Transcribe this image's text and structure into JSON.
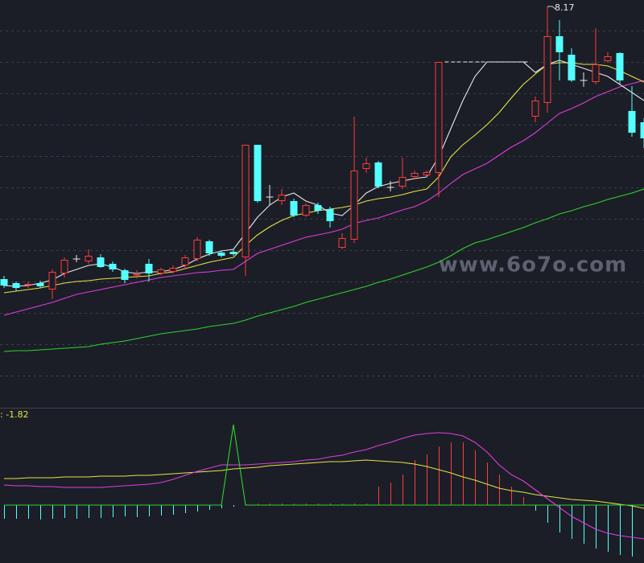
{
  "chart_data": [
    {
      "type": "candlestick",
      "open": [
        6.475,
        6.45,
        6.44,
        6.45,
        6.41,
        6.51,
        6.6,
        6.585,
        6.61,
        6.57,
        6.53,
        6.5,
        6.57,
        6.51,
        6.52,
        6.56,
        6.6,
        6.71,
        6.64,
        6.645,
        6.61,
        7.31,
        6.985,
        6.96,
        6.96,
        6.87,
        6.935,
        6.91,
        6.67,
        6.72,
        7.16,
        7.2,
        7.045,
        7.05,
        7.11,
        7.12,
        7.135,
        7.825,
        7.825,
        7.825,
        7.825,
        7.825,
        7.825,
        7.825,
        7.485,
        7.57,
        7.985,
        7.87,
        7.71,
        7.7,
        7.83,
        7.88,
        7.52,
        7.45
      ],
      "high": [
        6.495,
        6.46,
        6.46,
        6.465,
        6.535,
        6.61,
        6.625,
        6.66,
        6.63,
        6.585,
        6.54,
        6.53,
        6.6,
        6.545,
        6.56,
        6.625,
        6.735,
        6.72,
        6.65,
        6.66,
        7.31,
        7.31,
        7.06,
        7.035,
        6.975,
        6.945,
        6.95,
        6.925,
        6.76,
        7.485,
        7.23,
        7.21,
        7.085,
        7.23,
        7.15,
        7.15,
        7.825,
        7.825,
        7.825,
        7.825,
        7.825,
        7.825,
        7.825,
        7.825,
        7.61,
        8.17,
        8.085,
        7.91,
        7.76,
        8.035,
        7.885,
        7.885,
        7.675,
        7.475
      ],
      "low": [
        6.42,
        6.4,
        6.42,
        6.42,
        6.35,
        6.485,
        6.58,
        6.57,
        6.545,
        6.52,
        6.45,
        6.48,
        6.46,
        6.5,
        6.51,
        6.535,
        6.585,
        6.62,
        6.61,
        6.62,
        6.495,
        6.95,
        6.935,
        6.935,
        6.86,
        6.86,
        6.88,
        6.795,
        6.66,
        6.7,
        7.135,
        7.04,
        7.02,
        7.035,
        7.1,
        7.11,
        6.985,
        7.825,
        7.825,
        7.825,
        7.825,
        7.825,
        7.825,
        7.825,
        7.45,
        7.51,
        7.71,
        7.7,
        7.67,
        7.685,
        7.82,
        7.685,
        7.36,
        7.29
      ],
      "close": [
        6.435,
        6.42,
        6.445,
        6.43,
        6.52,
        6.595,
        6.6,
        6.62,
        6.55,
        6.535,
        6.47,
        6.505,
        6.51,
        6.535,
        6.545,
        6.61,
        6.72,
        6.635,
        6.62,
        6.63,
        7.31,
        6.96,
        6.985,
        7.0,
        6.87,
        6.935,
        6.9,
        6.835,
        6.73,
        7.15,
        7.195,
        7.05,
        7.045,
        7.11,
        7.135,
        7.14,
        7.825,
        7.825,
        7.825,
        7.825,
        7.825,
        7.825,
        7.825,
        7.825,
        7.585,
        7.985,
        7.885,
        7.71,
        7.71,
        7.81,
        7.86,
        7.71,
        7.385,
        7.35
      ],
      "up_color": "#ff3b3b",
      "down_color": "#54ffff",
      "flat_color": "#e8e8e8",
      "ylim": [
        5.685,
        8.21
      ],
      "grid": true,
      "lines": [
        {
          "color": "#e8e8e8",
          "values": [
            6.435,
            6.43,
            6.435,
            6.45,
            6.47,
            6.51,
            6.535,
            6.56,
            6.57,
            6.55,
            6.52,
            6.51,
            6.52,
            6.52,
            6.535,
            6.56,
            6.6,
            6.63,
            6.65,
            6.66,
            6.76,
            6.86,
            6.935,
            6.985,
            7.01,
            6.96,
            6.935,
            6.885,
            6.87,
            6.935,
            7.01,
            7.05,
            7.07,
            7.085,
            7.1,
            7.11,
            7.235,
            7.41,
            7.585,
            7.735,
            7.825,
            7.825,
            7.825,
            7.825,
            7.76,
            7.81,
            7.835,
            7.81,
            7.785,
            7.76,
            7.735,
            7.685,
            7.635,
            7.585
          ]
        },
        {
          "color": "#e6e34a",
          "values": [
            6.39,
            6.4,
            6.41,
            6.42,
            6.435,
            6.45,
            6.46,
            6.465,
            6.475,
            6.48,
            6.485,
            6.49,
            6.495,
            6.51,
            6.52,
            6.54,
            6.56,
            6.58,
            6.595,
            6.61,
            6.685,
            6.75,
            6.8,
            6.84,
            6.87,
            6.885,
            6.9,
            6.91,
            6.92,
            6.935,
            6.96,
            6.975,
            6.985,
            7.0,
            7.02,
            7.035,
            7.11,
            7.235,
            7.31,
            7.37,
            7.435,
            7.51,
            7.6,
            7.685,
            7.75,
            7.81,
            7.82,
            7.82,
            7.81,
            7.81,
            7.8,
            7.77,
            7.735,
            7.7
          ]
        },
        {
          "color": "#e03ce0",
          "values": [
            6.25,
            6.27,
            6.29,
            6.31,
            6.33,
            6.355,
            6.38,
            6.395,
            6.41,
            6.425,
            6.44,
            6.455,
            6.47,
            6.485,
            6.495,
            6.505,
            6.515,
            6.52,
            6.53,
            6.535,
            6.585,
            6.635,
            6.66,
            6.685,
            6.71,
            6.735,
            6.75,
            6.765,
            6.785,
            6.82,
            6.84,
            6.855,
            6.88,
            6.905,
            6.925,
            6.96,
            7.01,
            7.07,
            7.125,
            7.16,
            7.195,
            7.245,
            7.295,
            7.335,
            7.385,
            7.445,
            7.505,
            7.535,
            7.57,
            7.61,
            7.64,
            7.67,
            7.69,
            7.71
          ]
        },
        {
          "color": "#2ed32e",
          "values": [
            6.025,
            6.03,
            6.03,
            6.035,
            6.04,
            6.045,
            6.05,
            6.055,
            6.07,
            6.08,
            6.09,
            6.105,
            6.12,
            6.135,
            6.145,
            6.155,
            6.165,
            6.18,
            6.19,
            6.2,
            6.22,
            6.245,
            6.265,
            6.285,
            6.305,
            6.33,
            6.35,
            6.37,
            6.39,
            6.41,
            6.43,
            6.455,
            6.475,
            6.5,
            6.525,
            6.55,
            6.58,
            6.62,
            6.665,
            6.7,
            6.72,
            6.745,
            6.77,
            6.795,
            6.825,
            6.85,
            6.88,
            6.9,
            6.925,
            6.945,
            6.97,
            6.99,
            7.01,
            7.035
          ]
        }
      ],
      "high_label": 8.17,
      "watermark": "www.6o7o.com"
    },
    {
      "type": "macd",
      "label": ": -1.82",
      "ylim": [
        -1.8,
        3.0
      ],
      "up_color": "#ff3b3b",
      "down_color": "#54ffff",
      "values": [
        -0.425,
        -0.425,
        -0.425,
        -0.45,
        -0.425,
        -0.4,
        -0.425,
        -0.4,
        -0.4,
        -0.375,
        -0.35,
        -0.375,
        -0.35,
        -0.325,
        -0.3,
        -0.25,
        -0.2,
        -0.15,
        -0.1,
        -0.05,
        0.025,
        0.05,
        0.05,
        0.05,
        0.05,
        0.05,
        0.05,
        0.05,
        0.05,
        0.05,
        0.05,
        0.575,
        0.7,
        0.95,
        1.4,
        1.575,
        1.825,
        1.95,
        1.95,
        1.7,
        1.325,
        0.95,
        0.575,
        0.25,
        -0.175,
        -0.55,
        -0.85,
        -1.05,
        -1.2,
        -1.35,
        -1.45,
        -1.55,
        -1.6,
        -1.675
      ],
      "lines": [
        {
          "color": "#e6e34a",
          "values": [
            0.825,
            0.825,
            0.85,
            0.85,
            0.85,
            0.875,
            0.875,
            0.875,
            0.9,
            0.9,
            0.9,
            0.925,
            0.925,
            0.95,
            0.975,
            1.0,
            1.025,
            1.05,
            1.075,
            1.125,
            1.15,
            1.175,
            1.225,
            1.25,
            1.275,
            1.3,
            1.325,
            1.35,
            1.35,
            1.375,
            1.4,
            1.375,
            1.35,
            1.325,
            1.275,
            1.2,
            1.1,
            1.0,
            0.875,
            0.775,
            0.65,
            0.525,
            0.45,
            0.4,
            0.325,
            0.275,
            0.225,
            0.175,
            0.15,
            0.125,
            0.075,
            0.025,
            -0.025,
            -0.1
          ]
        },
        {
          "color": "#e03ce0",
          "values": [
            0.625,
            0.6,
            0.6,
            0.575,
            0.575,
            0.55,
            0.55,
            0.55,
            0.55,
            0.575,
            0.6,
            0.625,
            0.65,
            0.7,
            0.8,
            0.925,
            1.05,
            1.15,
            1.25,
            1.25,
            1.25,
            1.275,
            1.3,
            1.325,
            1.35,
            1.4,
            1.425,
            1.5,
            1.55,
            1.65,
            1.725,
            1.85,
            1.95,
            2.075,
            2.175,
            2.225,
            2.25,
            2.225,
            2.15,
            1.95,
            1.65,
            1.25,
            0.95,
            0.75,
            0.475,
            0.2,
            -0.075,
            -0.35,
            -0.55,
            -0.75,
            -0.875,
            -0.95,
            -1.0,
            -1.05
          ]
        },
        {
          "color": "#2ed32e",
          "values": [
            0,
            0,
            0,
            0,
            0,
            0,
            0,
            0,
            0,
            0,
            0,
            0,
            0,
            0,
            0,
            0,
            0,
            0,
            0,
            2.5,
            0,
            0,
            0,
            0,
            0,
            0,
            0,
            0,
            0,
            0,
            0,
            0,
            0,
            0,
            0,
            0,
            0,
            0,
            0,
            0,
            0,
            0,
            0,
            0,
            0,
            0,
            0,
            0,
            0,
            0,
            0,
            0,
            0,
            0
          ]
        }
      ]
    }
  ]
}
